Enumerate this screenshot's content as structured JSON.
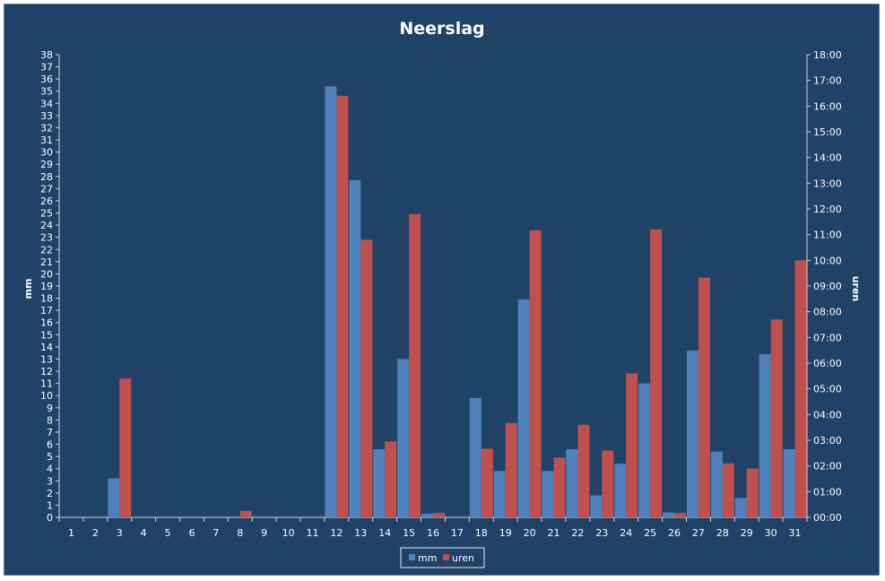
{
  "chart_data": {
    "type": "bar",
    "title": "Neerslag",
    "categories": [
      "1",
      "2",
      "3",
      "4",
      "5",
      "6",
      "7",
      "8",
      "9",
      "10",
      "11",
      "12",
      "13",
      "14",
      "15",
      "16",
      "17",
      "18",
      "19",
      "20",
      "21",
      "22",
      "23",
      "24",
      "25",
      "26",
      "27",
      "28",
      "29",
      "30",
      "31"
    ],
    "y_left": {
      "label": "mm",
      "range": [
        0,
        38
      ],
      "ticks": [
        "0",
        "1",
        "2",
        "3",
        "4",
        "5",
        "6",
        "7",
        "8",
        "9",
        "10",
        "11",
        "12",
        "13",
        "14",
        "15",
        "16",
        "17",
        "18",
        "19",
        "20",
        "21",
        "22",
        "23",
        "24",
        "25",
        "26",
        "27",
        "28",
        "29",
        "30",
        "31",
        "32",
        "33",
        "34",
        "35",
        "36",
        "37",
        "38"
      ]
    },
    "y_right": {
      "label": "uren",
      "range_hours": [
        0,
        18
      ],
      "ticks": [
        "00:00",
        "01:00",
        "02:00",
        "03:00",
        "04:00",
        "05:00",
        "06:00",
        "07:00",
        "08:00",
        "09:00",
        "10:00",
        "11:00",
        "12:00",
        "13:00",
        "14:00",
        "15:00",
        "16:00",
        "17:00",
        "18:00"
      ]
    },
    "series": [
      {
        "name": "mm",
        "axis": "left",
        "color": "#4f81bd",
        "values": [
          0,
          0,
          3.2,
          0,
          0,
          0,
          0,
          0,
          0,
          0,
          0,
          35.4,
          27.7,
          5.6,
          13,
          0.3,
          0,
          9.8,
          3.8,
          17.9,
          3.8,
          5.6,
          1.8,
          4.4,
          11,
          0.4,
          13.7,
          5.4,
          1.6,
          13.4,
          5.6
        ]
      },
      {
        "name": "uren",
        "axis": "right",
        "color": "#c0504d",
        "values": [
          0,
          0,
          5.4,
          0,
          0,
          0,
          0,
          0.25,
          0,
          0,
          0,
          16.4,
          10.8,
          2.95,
          11.8,
          0.17,
          0,
          2.67,
          3.67,
          11.17,
          2.33,
          3.6,
          2.6,
          5.6,
          11.2,
          0.17,
          9.33,
          2.1,
          1.9,
          7.7,
          10.0
        ]
      }
    ],
    "legend_position": "bottom",
    "grid": false
  },
  "colors": {
    "background": "#1f4266",
    "frame": "#17375e",
    "text": "#ffffff",
    "axis": "#d0d8e2"
  }
}
